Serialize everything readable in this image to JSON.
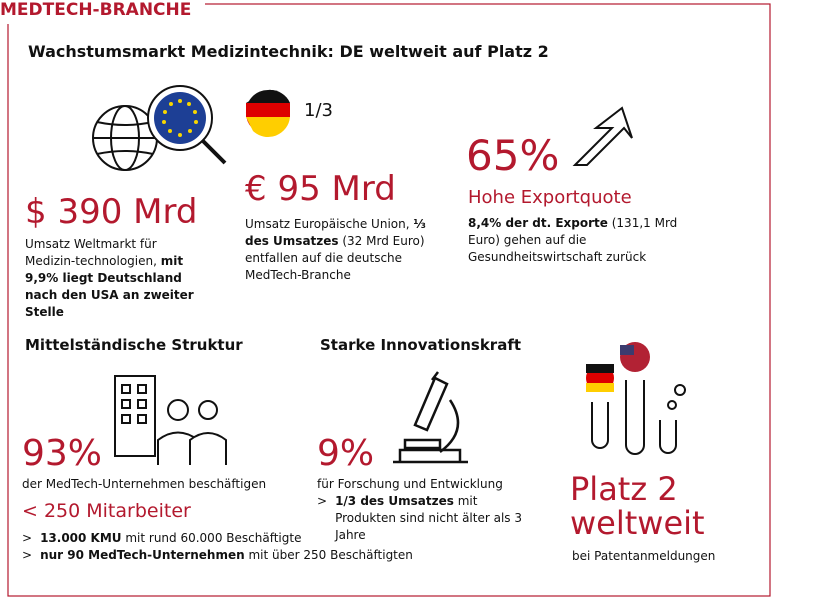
{
  "header": {
    "label": "MEDTECH-BRANCHE",
    "title": "Wachstumsmarkt Medizintechnik: DE weltweit auf Platz 2"
  },
  "world": {
    "figure": "$ 390 Mrd",
    "text": [
      "Umsatz Weltmarkt für Medizin-technologien, ",
      "mit 9,9% liegt Deutschland nach den USA an zweiter Stelle"
    ]
  },
  "eu": {
    "fraction": "1/3",
    "figure": "€ 95 Mrd",
    "text": [
      "Umsatz Europäische Union, ",
      "⅓ des Umsatzes",
      " (32 Mrd Euro) entfallen auf die deutsche MedTech-Branche"
    ]
  },
  "export": {
    "figure": "65%",
    "subtitle": "Hohe Exportquote",
    "text": [
      "8,4% der dt. Exporte",
      " (131,1 Mrd Euro) gehen auf die Gesundheitswirtschaft zurück"
    ]
  },
  "structure": {
    "heading": "Mittelständische Struktur",
    "figure": "93%",
    "text": "der MedTech-Unternehmen beschäftigen",
    "subfigure": "< 250 Mitarbeiter",
    "bullets": [
      {
        "marker": ">",
        "bold": "13.000 KMU",
        "text": " mit rund 60.000 Beschäftigte"
      },
      {
        "marker": ">",
        "bold": "nur 90 MedTech-Unternehmen",
        "text": " mit über 250 Beschäftigten"
      }
    ]
  },
  "innovation": {
    "heading": "Starke Innovationskraft",
    "figure": "9%",
    "text": "für Forschung und Entwicklung",
    "bullets": [
      {
        "marker": ">",
        "bold": "1/3 des Umsatzes",
        "text": " mit Produkten sind nicht älter als 3 Jahre"
      }
    ]
  },
  "rank": {
    "figure": [
      "Platz 2",
      "weltweit"
    ],
    "text": "bei Patentanmeldungen"
  }
}
